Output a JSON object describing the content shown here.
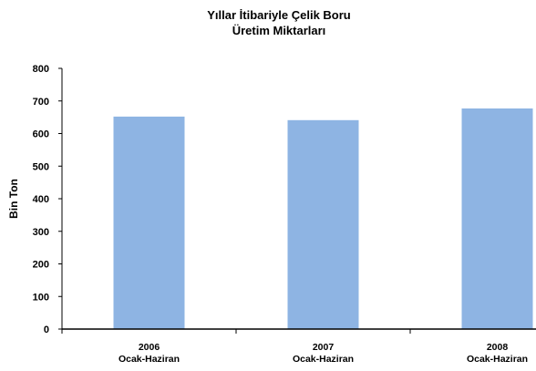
{
  "chart_data": {
    "type": "bar",
    "title_lines": [
      "Yıllar İtibariyle Çelik Boru",
      "Üretim Miktarları"
    ],
    "ylabel": "Bin Ton",
    "xlabel": "",
    "categories": [
      [
        "2006",
        "Ocak-Haziran"
      ],
      [
        "2007",
        "Ocak-Haziran"
      ],
      [
        "2008",
        "Ocak-Haziran"
      ]
    ],
    "values": [
      652,
      641,
      677
    ],
    "ylim": [
      0,
      800
    ],
    "yticks": [
      0,
      100,
      200,
      300,
      400,
      500,
      600,
      700,
      800
    ],
    "grid": false,
    "legend": "none",
    "bar_color": "#8EB4E3",
    "axis_color": "#000000"
  }
}
